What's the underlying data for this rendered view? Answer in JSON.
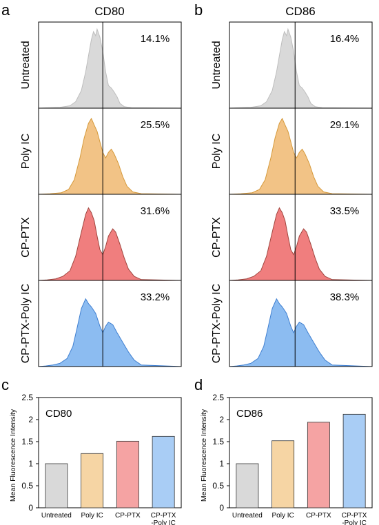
{
  "colors": {
    "untreated": "#d9d9d9",
    "poly_ic": "#f6d5a4",
    "cp_ptx": "#f5a3a3",
    "cp_ptx_poly_ic": "#a9cdf5",
    "histogram_fills": [
      "#d9d9d9",
      "#f2c386",
      "#f07e7e",
      "#8cbcf1"
    ],
    "histogram_strokes": [
      "#bdbdbd",
      "#d59a3c",
      "#a0463f",
      "#3f7fd0"
    ]
  },
  "panels": {
    "a": {
      "letter": "a",
      "title": "CD80"
    },
    "b": {
      "letter": "b",
      "title": "CD86"
    },
    "c": {
      "letter": "c"
    },
    "d": {
      "letter": "d"
    }
  },
  "row_labels": [
    "Untreated",
    "Poly IC",
    "CP-PTX",
    "CP-PTX-Poly IC"
  ],
  "chart_data": [
    {
      "type": "histogram",
      "panel": "a",
      "title": "CD80",
      "rows": [
        "Untreated",
        "Poly IC",
        "CP-PTX",
        "CP-PTX-Poly IC"
      ],
      "percent_labels": [
        "14.1%",
        "25.5%",
        "31.6%",
        "33.2%"
      ],
      "grid": false
    },
    {
      "type": "histogram",
      "panel": "b",
      "title": "CD86",
      "rows": [
        "Untreated",
        "Poly IC",
        "CP-PTX",
        "CP-PTX-Poly IC"
      ],
      "percent_labels": [
        "16.4%",
        "29.1%",
        "33.5%",
        "38.3%"
      ],
      "grid": false
    },
    {
      "type": "bar",
      "panel": "c",
      "inset_label": "CD80",
      "categories": [
        "Untreated",
        "Poly IC",
        "CP-PTX",
        "CP-PTX\n-Poly IC"
      ],
      "values": [
        1.0,
        1.23,
        1.51,
        1.62
      ],
      "ylabel": "Mean Fluorescence Intensity",
      "ylim": [
        0,
        2.5
      ],
      "yticks": [
        "0",
        "0.5",
        "1",
        "1.5",
        "2",
        "2.5"
      ],
      "grid": false
    },
    {
      "type": "bar",
      "panel": "d",
      "inset_label": "CD86",
      "categories": [
        "Untreated",
        "Poly IC",
        "CP-PTX",
        "CP-PTX\n-Poly IC"
      ],
      "values": [
        1.0,
        1.52,
        1.94,
        2.12
      ],
      "ylabel": "Mean Fluorescence Intensity",
      "ylim": [
        0,
        2.5
      ],
      "yticks": [
        "0",
        "0.5",
        "1",
        "1.5",
        "2",
        "2.5"
      ],
      "grid": false
    }
  ]
}
